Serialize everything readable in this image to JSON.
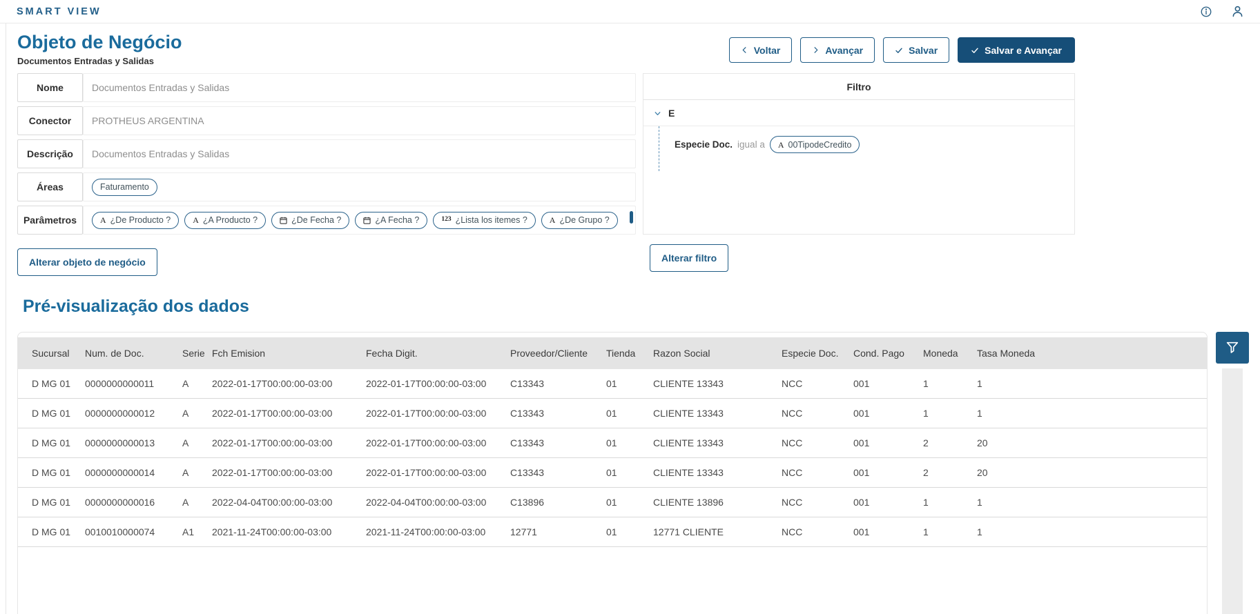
{
  "colors": {
    "accent": "#1f5c86",
    "primary_button": "#164e78",
    "heading": "#1a6b9c",
    "table_header_bg": "#e4e4e4"
  },
  "topbar": {
    "logo": "SMART VIEW",
    "icons": [
      "info-icon",
      "user-icon"
    ]
  },
  "page": {
    "title": "Objeto de Negócio",
    "subtitle": "Documentos Entradas y Salidas"
  },
  "actions": {
    "back": "Voltar",
    "forward": "Avançar",
    "save": "Salvar",
    "save_forward": "Salvar e Avançar"
  },
  "form": {
    "fields": [
      {
        "label": "Nome",
        "value": "Documentos Entradas y Salidas"
      },
      {
        "label": "Conector",
        "value": "PROTHEUS ARGENTINA"
      },
      {
        "label": "Descrição",
        "value": "Documentos Entradas y Salidas"
      },
      {
        "label": "Áreas",
        "chips": [
          {
            "text": "Faturamento"
          }
        ]
      },
      {
        "label": "Parâmetros",
        "chips": [
          {
            "icon": "text-icon",
            "text": "¿De Producto ?"
          },
          {
            "icon": "text-icon",
            "text": "¿A Producto ?"
          },
          {
            "icon": "calendar-icon",
            "text": "¿De Fecha ?"
          },
          {
            "icon": "calendar-icon",
            "text": "¿A Fecha ?"
          },
          {
            "icon": "number-icon",
            "text": "¿Lista los itemes ?"
          },
          {
            "icon": "text-icon",
            "text": "¿De Grupo ?"
          }
        ]
      }
    ],
    "edit_button": "Alterar objeto de negócio"
  },
  "filter": {
    "title": "Filtro",
    "root_node": "E",
    "condition": {
      "field": "Especie Doc.",
      "operator": "igual a",
      "icon": "text-icon",
      "chip": "00TipodeCredito"
    },
    "edit_button": "Alterar filtro"
  },
  "preview": {
    "title": "Pré-visualização dos dados",
    "columns": [
      "Sucursal",
      "Num. de Doc.",
      "Serie",
      "Fch Emision",
      "Fecha Digit.",
      "Proveedor/Cliente",
      "Tienda",
      "Razon Social",
      "Especie Doc.",
      "Cond. Pago",
      "Moneda",
      "Tasa Moneda"
    ],
    "rows": [
      [
        "D MG 01",
        "0000000000011",
        "A",
        "2022-01-17T00:00:00-03:00",
        "2022-01-17T00:00:00-03:00",
        "C13343",
        "01",
        "CLIENTE 13343",
        "NCC",
        "001",
        "1",
        "1"
      ],
      [
        "D MG 01",
        "0000000000012",
        "A",
        "2022-01-17T00:00:00-03:00",
        "2022-01-17T00:00:00-03:00",
        "C13343",
        "01",
        "CLIENTE 13343",
        "NCC",
        "001",
        "1",
        "1"
      ],
      [
        "D MG 01",
        "0000000000013",
        "A",
        "2022-01-17T00:00:00-03:00",
        "2022-01-17T00:00:00-03:00",
        "C13343",
        "01",
        "CLIENTE 13343",
        "NCC",
        "001",
        "2",
        "20"
      ],
      [
        "D MG 01",
        "0000000000014",
        "A",
        "2022-01-17T00:00:00-03:00",
        "2022-01-17T00:00:00-03:00",
        "C13343",
        "01",
        "CLIENTE 13343",
        "NCC",
        "001",
        "2",
        "20"
      ],
      [
        "D MG 01",
        "0000000000016",
        "A",
        "2022-04-04T00:00:00-03:00",
        "2022-04-04T00:00:00-03:00",
        "C13896",
        "01",
        "CLIENTE 13896",
        "NCC",
        "001",
        "1",
        "1"
      ],
      [
        "D MG 01",
        "0010010000074",
        "A1",
        "2021-11-24T00:00:00-03:00",
        "2021-11-24T00:00:00-03:00",
        "12771",
        "01",
        "12771 CLIENTE",
        "NCC",
        "001",
        "1",
        "1"
      ]
    ]
  }
}
